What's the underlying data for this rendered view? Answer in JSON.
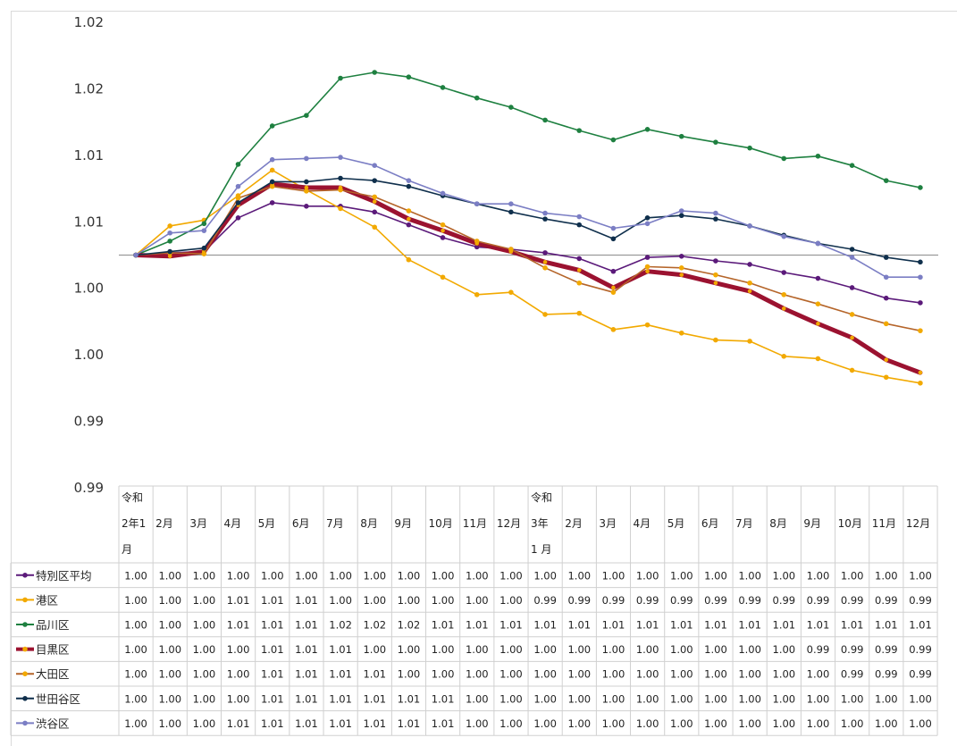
{
  "chart_data": {
    "type": "line",
    "y_tick_labels": [
      "1.02",
      "1.02",
      "1.01",
      "1.01",
      "1.00",
      "1.00",
      "0.99",
      "0.99"
    ],
    "ylim": [
      0.98,
      1.02
    ],
    "grid": false,
    "legend": "data-table-left",
    "categories": [
      [
        "令和",
        "2年1",
        "月"
      ],
      [
        "2月"
      ],
      [
        "3月"
      ],
      [
        "4月"
      ],
      [
        "5月"
      ],
      [
        "6月"
      ],
      [
        "7月"
      ],
      [
        "8月"
      ],
      [
        "9月"
      ],
      [
        "10月"
      ],
      [
        "11月"
      ],
      [
        "12月"
      ],
      [
        "令和",
        "3年",
        "1 月"
      ],
      [
        "2月"
      ],
      [
        "3月"
      ],
      [
        "4月"
      ],
      [
        "5月"
      ],
      [
        "6月"
      ],
      [
        "7月"
      ],
      [
        "8月"
      ],
      [
        "9月"
      ],
      [
        "10月"
      ],
      [
        "11月"
      ],
      [
        "12月"
      ]
    ],
    "series": [
      {
        "name": "特別区平均",
        "color": "#5b1a7a",
        "width": 1.6,
        "marker": "#5b1a7a",
        "values": [
          1.0,
          1.0002,
          1.0003,
          1.0032,
          1.0045,
          1.0042,
          1.0042,
          1.0037,
          1.0026,
          1.0015,
          1.0007,
          1.0005,
          1.0002,
          0.9997,
          0.9986,
          0.9998,
          0.9999,
          0.9995,
          0.9992,
          0.9985,
          0.998,
          0.9972,
          0.9963,
          0.9959
        ],
        "table": [
          "1.00",
          "1.00",
          "1.00",
          "1.00",
          "1.00",
          "1.00",
          "1.00",
          "1.00",
          "1.00",
          "1.00",
          "1.00",
          "1.00",
          "1.00",
          "1.00",
          "1.00",
          "1.00",
          "1.00",
          "1.00",
          "1.00",
          "1.00",
          "1.00",
          "1.00",
          "1.00",
          "1.00"
        ]
      },
      {
        "name": "港区",
        "color": "#f2a900",
        "width": 1.6,
        "marker": "#f2a900",
        "values": [
          1.0,
          1.0025,
          1.003,
          1.0051,
          1.0073,
          1.0056,
          1.004,
          1.0024,
          0.9996,
          0.9981,
          0.9966,
          0.9968,
          0.9949,
          0.995,
          0.9936,
          0.994,
          0.9933,
          0.9927,
          0.9926,
          0.9913,
          0.9911,
          0.9901,
          0.9895,
          0.989
        ],
        "table": [
          "1.00",
          "1.00",
          "1.00",
          "1.01",
          "1.01",
          "1.01",
          "1.00",
          "1.00",
          "1.00",
          "1.00",
          "1.00",
          "1.00",
          "0.99",
          "0.99",
          "0.99",
          "0.99",
          "0.99",
          "0.99",
          "0.99",
          "0.99",
          "0.99",
          "0.99",
          "0.99",
          "0.99"
        ]
      },
      {
        "name": "品川区",
        "color": "#1e8040",
        "width": 1.6,
        "marker": "#1e8040",
        "values": [
          1.0,
          1.0012,
          1.0027,
          1.0078,
          1.0111,
          1.012,
          1.0152,
          1.0157,
          1.0153,
          1.0144,
          1.0135,
          1.0127,
          1.0116,
          1.0107,
          1.0099,
          1.0108,
          1.0102,
          1.0097,
          1.0092,
          1.0083,
          1.0085,
          1.0077,
          1.0064,
          1.0058
        ],
        "table": [
          "1.00",
          "1.00",
          "1.00",
          "1.01",
          "1.01",
          "1.01",
          "1.02",
          "1.02",
          "1.02",
          "1.01",
          "1.01",
          "1.01",
          "1.01",
          "1.01",
          "1.01",
          "1.01",
          "1.01",
          "1.01",
          "1.01",
          "1.01",
          "1.01",
          "1.01",
          "1.01",
          "1.01"
        ]
      },
      {
        "name": "目黒区",
        "color": "#9b1230",
        "width": 5,
        "marker": "#f2a900",
        "values": [
          1.0,
          0.9999,
          1.0003,
          1.0043,
          1.0061,
          1.0058,
          1.0058,
          1.0046,
          1.0031,
          1.0021,
          1.001,
          1.0003,
          0.9994,
          0.9987,
          0.9972,
          0.9986,
          0.9983,
          0.9976,
          0.9969,
          0.9954,
          0.9941,
          0.9929,
          0.991,
          0.9899
        ],
        "table": [
          "1.00",
          "1.00",
          "1.00",
          "1.00",
          "1.01",
          "1.01",
          "1.01",
          "1.00",
          "1.00",
          "1.00",
          "1.00",
          "1.00",
          "1.00",
          "1.00",
          "1.00",
          "1.00",
          "1.00",
          "1.00",
          "1.00",
          "1.00",
          "0.99",
          "0.99",
          "0.99",
          "0.99"
        ]
      },
      {
        "name": "大田区",
        "color": "#b5652a",
        "width": 1.6,
        "marker": "#f2a900",
        "values": [
          1.0,
          1.0002,
          1.0001,
          1.0049,
          1.0059,
          1.0055,
          1.0056,
          1.005,
          1.0038,
          1.0026,
          1.0012,
          1.0005,
          0.9989,
          0.9976,
          0.9968,
          0.999,
          0.9989,
          0.9983,
          0.9976,
          0.9966,
          0.9958,
          0.9949,
          0.9941,
          0.9935
        ],
        "table": [
          "1.00",
          "1.00",
          "1.00",
          "1.00",
          "1.01",
          "1.01",
          "1.01",
          "1.01",
          "1.00",
          "1.00",
          "1.00",
          "1.00",
          "1.00",
          "1.00",
          "1.00",
          "1.00",
          "1.00",
          "1.00",
          "1.00",
          "1.00",
          "1.00",
          "0.99",
          "0.99",
          "0.99"
        ]
      },
      {
        "name": "世田谷区",
        "color": "#0f2f4c",
        "width": 1.6,
        "marker": "#0f2f4c",
        "values": [
          1.0,
          1.0003,
          1.0006,
          1.0045,
          1.0063,
          1.0063,
          1.0066,
          1.0064,
          1.0059,
          1.0051,
          1.0044,
          1.0037,
          1.0031,
          1.0026,
          1.0014,
          1.0032,
          1.0034,
          1.0031,
          1.0025,
          1.0017,
          1.001,
          1.0005,
          0.9998,
          0.9994
        ],
        "table": [
          "1.00",
          "1.00",
          "1.00",
          "1.00",
          "1.01",
          "1.01",
          "1.01",
          "1.01",
          "1.01",
          "1.01",
          "1.00",
          "1.00",
          "1.00",
          "1.00",
          "1.00",
          "1.00",
          "1.00",
          "1.00",
          "1.00",
          "1.00",
          "1.00",
          "1.00",
          "1.00",
          "1.00"
        ]
      },
      {
        "name": "渋谷区",
        "color": "#7b7ec4",
        "width": 1.6,
        "marker": "#7b7ec4",
        "values": [
          1.0,
          1.0019,
          1.0021,
          1.0059,
          1.0082,
          1.0083,
          1.0084,
          1.0077,
          1.0064,
          1.0053,
          1.0044,
          1.0044,
          1.0036,
          1.0033,
          1.0023,
          1.0027,
          1.0038,
          1.0036,
          1.0025,
          1.0016,
          1.001,
          0.9998,
          0.9981,
          0.9981
        ],
        "table": [
          "1.00",
          "1.00",
          "1.00",
          "1.01",
          "1.01",
          "1.01",
          "1.01",
          "1.01",
          "1.01",
          "1.01",
          "1.00",
          "1.00",
          "1.00",
          "1.00",
          "1.00",
          "1.00",
          "1.00",
          "1.00",
          "1.00",
          "1.00",
          "1.00",
          "1.00",
          "1.00",
          "1.00"
        ]
      }
    ]
  }
}
